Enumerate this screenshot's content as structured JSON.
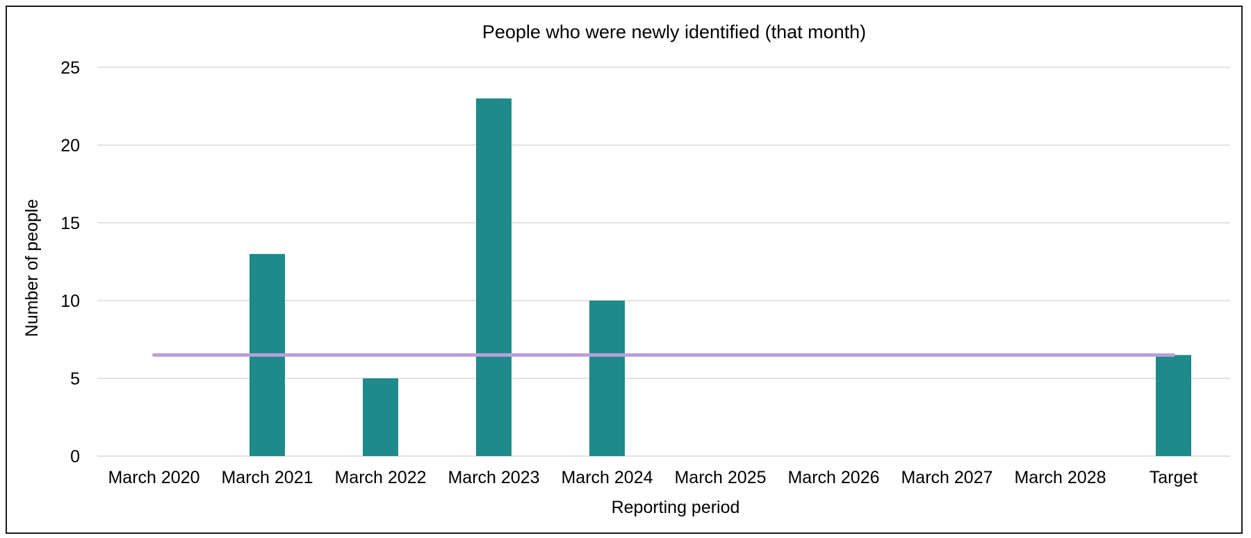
{
  "chart_data": {
    "type": "bar",
    "title": "People who were newly identified (that month)",
    "xlabel": "Reporting period",
    "ylabel": "Number of people",
    "categories": [
      "March 2020",
      "March 2021",
      "March 2022",
      "March 2023",
      "March 2024",
      "March 2025",
      "March 2026",
      "March 2027",
      "March 2028",
      "Target"
    ],
    "series": [
      {
        "values": [
          0,
          13,
          5,
          23,
          10,
          0,
          0,
          0,
          0,
          6.5
        ]
      }
    ],
    "target_line": {
      "value": 6.5
    },
    "ylim": [
      0,
      25
    ],
    "yticks": [
      0,
      5,
      10,
      15,
      20,
      25
    ],
    "grid": true,
    "legend": "none",
    "colors": {
      "bar": "#1e8a8a",
      "target_line": "#b9a0d8",
      "grid": "#d9d9d9"
    }
  }
}
